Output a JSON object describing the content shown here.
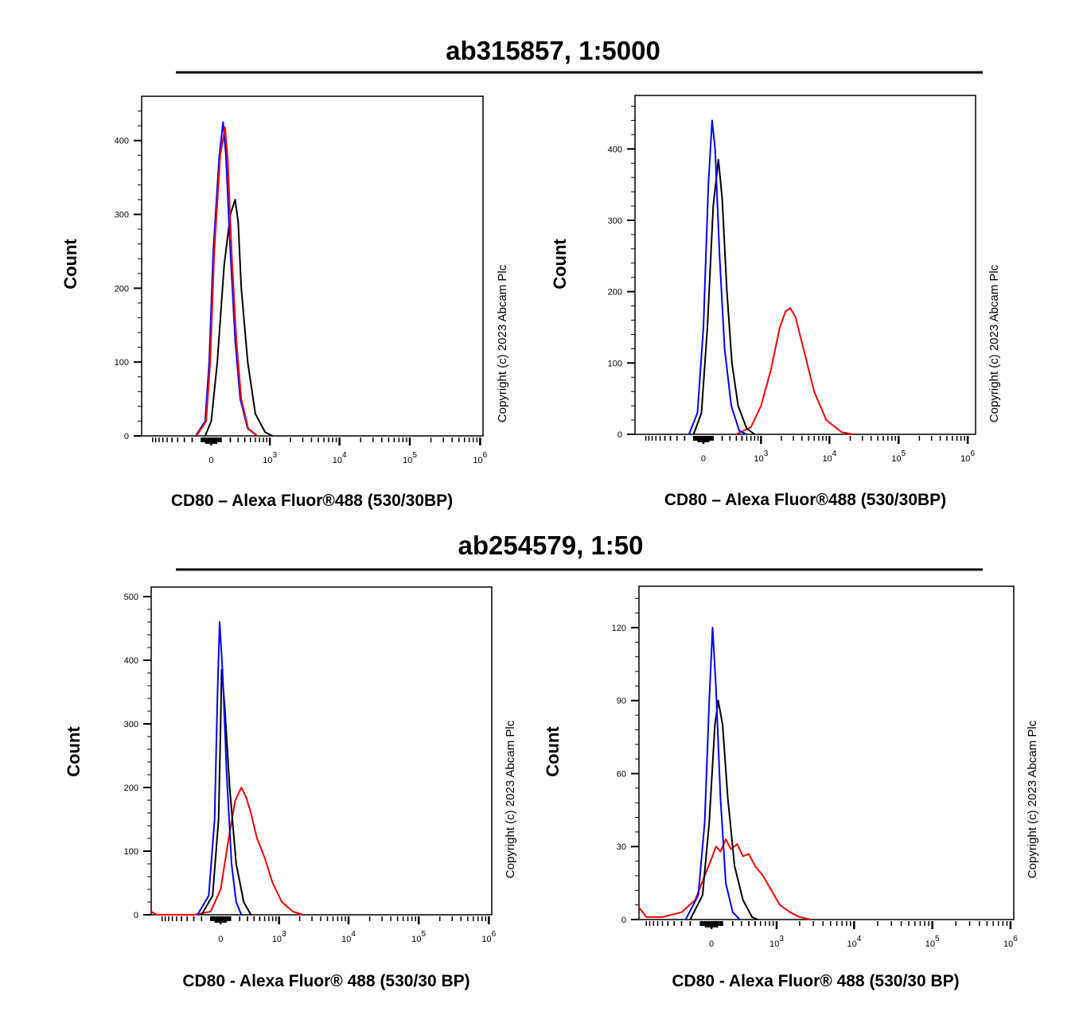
{
  "sections": [
    {
      "title": "ab315857, 1:5000"
    },
    {
      "title": "ab254579, 1:50"
    }
  ],
  "colors": {
    "isotype": "#0000ff",
    "unstained": "#000000",
    "stained": "#ff0000"
  },
  "chart_data": [
    {
      "type": "line",
      "section": 0,
      "xlabel": "CD80 – Alexa Fluor®488 (530/30BP)",
      "ylabel": "Count",
      "x_scale": "biexponential",
      "xlim": [
        -1450,
        1100000
      ],
      "ylim": [
        0,
        460
      ],
      "xticks": [
        0,
        1000,
        10000,
        100000,
        1000000
      ],
      "xtick_labels": [
        "0",
        "10^3",
        "10^4",
        "10^5",
        "10^6"
      ],
      "yticks": [
        0,
        100,
        200,
        300,
        400
      ],
      "ytick_labels": [
        "0",
        "100",
        "200",
        "300",
        "400"
      ],
      "watermark": "Copyright (c) 2023 Abcam Plc",
      "series": [
        {
          "color": "#000000",
          "points": [
            [
              -60,
              0
            ],
            [
              0,
              20
            ],
            [
              60,
              100
            ],
            [
              130,
              230
            ],
            [
              200,
              300
            ],
            [
              260,
              320
            ],
            [
              300,
              290
            ],
            [
              345,
              200
            ],
            [
              450,
              100
            ],
            [
              600,
              30
            ],
            [
              850,
              5
            ],
            [
              1100,
              0
            ]
          ]
        },
        {
          "color": "#0000ff",
          "points": [
            [
              -160,
              0
            ],
            [
              -60,
              20
            ],
            [
              -20,
              100
            ],
            [
              20,
              250
            ],
            [
              80,
              380
            ],
            [
              120,
              425
            ],
            [
              150,
              380
            ],
            [
              200,
              250
            ],
            [
              260,
              130
            ],
            [
              330,
              50
            ],
            [
              450,
              10
            ],
            [
              640,
              0
            ]
          ]
        },
        {
          "color": "#ff0000",
          "points": [
            [
              -150,
              0
            ],
            [
              -50,
              20
            ],
            [
              -10,
              100
            ],
            [
              30,
              250
            ],
            [
              90,
              380
            ],
            [
              140,
              418
            ],
            [
              170,
              375
            ],
            [
              215,
              250
            ],
            [
              275,
              130
            ],
            [
              345,
              50
            ],
            [
              460,
              10
            ],
            [
              650,
              0
            ]
          ]
        }
      ]
    },
    {
      "type": "line",
      "section": 0,
      "xlabel": "CD80 – Alexa Fluor®488 (530/30BP)",
      "ylabel": "Count",
      "x_scale": "biexponential",
      "xlim": [
        -1450,
        1300000
      ],
      "ylim": [
        0,
        475
      ],
      "xticks": [
        0,
        1000,
        10000,
        100000,
        1000000
      ],
      "xtick_labels": [
        "0",
        "10^3",
        "10^4",
        "10^5",
        "10^6"
      ],
      "yticks": [
        0,
        100,
        200,
        300,
        400
      ],
      "ytick_labels": [
        "0",
        "100",
        "200",
        "300",
        "400"
      ],
      "watermark": "Copyright (c) 2023 Abcam Plc",
      "series": [
        {
          "color": "#ff0000",
          "points": [
            [
              400,
              0
            ],
            [
              700,
              10
            ],
            [
              1000,
              40
            ],
            [
              1400,
              90
            ],
            [
              1900,
              150
            ],
            [
              2300,
              172
            ],
            [
              2700,
              177
            ],
            [
              3200,
              165
            ],
            [
              4200,
              120
            ],
            [
              6000,
              60
            ],
            [
              9000,
              20
            ],
            [
              15000,
              3
            ],
            [
              22000,
              0
            ]
          ]
        },
        {
          "color": "#000000",
          "points": [
            [
              -100,
              0
            ],
            [
              -20,
              30
            ],
            [
              40,
              150
            ],
            [
              100,
              320
            ],
            [
              156,
              385
            ],
            [
              200,
              330
            ],
            [
              260,
              200
            ],
            [
              330,
              100
            ],
            [
              430,
              40
            ],
            [
              600,
              8
            ],
            [
              800,
              0
            ]
          ]
        },
        {
          "color": "#0000ff",
          "points": [
            [
              -150,
              0
            ],
            [
              -60,
              30
            ],
            [
              0,
              150
            ],
            [
              50,
              350
            ],
            [
              88,
              440
            ],
            [
              120,
              400
            ],
            [
              170,
              250
            ],
            [
              230,
              120
            ],
            [
              320,
              40
            ],
            [
              450,
              5
            ],
            [
              600,
              0
            ]
          ]
        }
      ]
    },
    {
      "type": "line",
      "section": 1,
      "xlabel": "CD80 - Alexa Fluor® 488 (530/30 BP)",
      "ylabel": "Count",
      "x_scale": "biexponential",
      "xlim": [
        -1450,
        1100000
      ],
      "ylim": [
        0,
        515
      ],
      "xticks": [
        0,
        1000,
        10000,
        100000,
        1000000
      ],
      "xtick_labels": [
        "0",
        "10^3",
        "10^4",
        "10^5",
        "10^6"
      ],
      "yticks": [
        0,
        100,
        200,
        300,
        400,
        500
      ],
      "ytick_labels": [
        "0",
        "100",
        "200",
        "300",
        "400",
        "500"
      ],
      "watermark": "Copyright (c) 2023 Abcam Plc",
      "series": [
        {
          "color": "#ff0000",
          "points": [
            [
              -1450,
              5
            ],
            [
              -1200,
              0
            ],
            [
              -300,
              0
            ],
            [
              -100,
              5
            ],
            [
              0,
              40
            ],
            [
              80,
              120
            ],
            [
              150,
              180
            ],
            [
              220,
              200
            ],
            [
              280,
              185
            ],
            [
              350,
              160
            ],
            [
              450,
              120
            ],
            [
              600,
              90
            ],
            [
              800,
              50
            ],
            [
              1100,
              20
            ],
            [
              1600,
              5
            ],
            [
              2200,
              0
            ]
          ]
        },
        {
          "color": "#000000",
          "points": [
            [
              -200,
              0
            ],
            [
              -80,
              30
            ],
            [
              -20,
              150
            ],
            [
              0,
              300
            ],
            [
              10,
              385
            ],
            [
              40,
              330
            ],
            [
              90,
              200
            ],
            [
              160,
              80
            ],
            [
              250,
              20
            ],
            [
              350,
              0
            ]
          ]
        },
        {
          "color": "#0000ff",
          "points": [
            [
              -250,
              0
            ],
            [
              -120,
              30
            ],
            [
              -60,
              150
            ],
            [
              -30,
              350
            ],
            [
              -10,
              460
            ],
            [
              20,
              380
            ],
            [
              60,
              220
            ],
            [
              110,
              80
            ],
            [
              160,
              20
            ],
            [
              220,
              0
            ]
          ]
        }
      ]
    },
    {
      "type": "line",
      "section": 1,
      "xlabel": "CD80 - Alexa Fluor® 488 (530/30 BP)",
      "ylabel": "Count",
      "x_scale": "biexponential",
      "xlim": [
        -1250,
        1100000
      ],
      "ylim": [
        0,
        137
      ],
      "xticks": [
        0,
        1000,
        10000,
        100000,
        1000000
      ],
      "xtick_labels": [
        "0",
        "10^3",
        "10^4",
        "10^5",
        "10^6"
      ],
      "yticks": [
        0,
        30,
        60,
        90,
        120
      ],
      "ytick_labels": [
        "0",
        "30",
        "60",
        "90",
        "120"
      ],
      "watermark": "Copyright (c) 2023 Abcam Plc",
      "series": [
        {
          "color": "#ff0000",
          "points": [
            [
              -1250,
              5
            ],
            [
              -1000,
              1
            ],
            [
              -600,
              1
            ],
            [
              -300,
              3
            ],
            [
              -150,
              8
            ],
            [
              -60,
              18
            ],
            [
              0,
              25
            ],
            [
              40,
              30
            ],
            [
              80,
              28
            ],
            [
              130,
              33
            ],
            [
              180,
              29
            ],
            [
              250,
              31
            ],
            [
              320,
              26
            ],
            [
              400,
              27
            ],
            [
              500,
              22
            ],
            [
              650,
              18
            ],
            [
              850,
              12
            ],
            [
              1100,
              6
            ],
            [
              1500,
              3
            ],
            [
              2000,
              1
            ],
            [
              2800,
              0
            ]
          ]
        },
        {
          "color": "#000000",
          "points": [
            [
              -200,
              0
            ],
            [
              -80,
              10
            ],
            [
              -20,
              40
            ],
            [
              30,
              80
            ],
            [
              60,
              90
            ],
            [
              100,
              80
            ],
            [
              150,
              50
            ],
            [
              220,
              22
            ],
            [
              320,
              8
            ],
            [
              450,
              1
            ],
            [
              550,
              0
            ]
          ]
        },
        {
          "color": "#0000ff",
          "points": [
            [
              -250,
              0
            ],
            [
              -120,
              10
            ],
            [
              -60,
              40
            ],
            [
              -20,
              90
            ],
            [
              10,
              120
            ],
            [
              40,
              95
            ],
            [
              80,
              50
            ],
            [
              130,
              15
            ],
            [
              200,
              3
            ],
            [
              280,
              0
            ]
          ]
        }
      ]
    }
  ]
}
